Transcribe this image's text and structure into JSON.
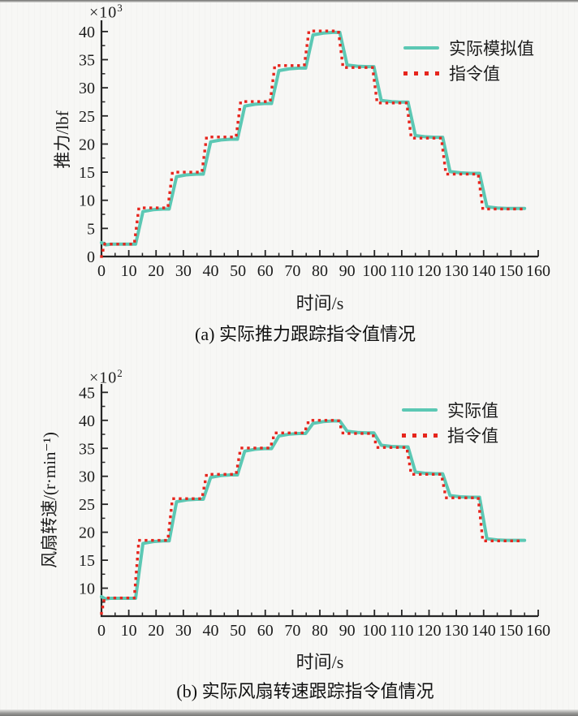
{
  "page": {
    "background": "#f7f7f5",
    "kind": "two-panel step-tracking figure"
  },
  "colors": {
    "actual_line": "#5cc8b4",
    "command_dots": "#e6251d",
    "axis": "#262626",
    "text": "#1c1c1c"
  },
  "chart_data": [
    {
      "type": "line",
      "caption_index": "(a)",
      "caption_text": "实际推力跟踪指令值情况",
      "xlabel": "时间/s",
      "ylabel": "推力/lbf",
      "y_multiplier_base": "×10",
      "y_multiplier_exp": "3",
      "xlim": [
        0,
        160
      ],
      "ylim": [
        0,
        42
      ],
      "x_ticks": [
        0,
        10,
        20,
        30,
        40,
        50,
        60,
        70,
        80,
        90,
        100,
        110,
        120,
        130,
        140,
        150,
        160
      ],
      "y_ticks": [
        0,
        5,
        10,
        15,
        20,
        25,
        30,
        35,
        40
      ],
      "grid": false,
      "legend_position": "top-right",
      "step_times": [
        0,
        12,
        24.3,
        36.8,
        49.3,
        61.8,
        74.3,
        86.8,
        99.3,
        111.8,
        124.5,
        138
      ],
      "t_end": 155,
      "series": [
        {
          "label": "实际模拟值",
          "style": "solid",
          "color": "#5cc8b4",
          "levels": [
            2.2,
            8.45,
            14.65,
            20.85,
            27.2,
            33.5,
            39.85,
            33.75,
            27.45,
            21.2,
            14.8,
            8.55
          ],
          "start_value": 2.2
        },
        {
          "label": "指令值",
          "style": "dotted",
          "color": "#e6251d",
          "levels": [
            2.2,
            8.65,
            15.0,
            21.25,
            27.55,
            33.95,
            40.1,
            33.6,
            27.3,
            21.05,
            14.65,
            8.45
          ],
          "start_value": 0
        }
      ]
    },
    {
      "type": "line",
      "caption_index": "(b)",
      "caption_text": "实际风扇转速跟踪指令值情况",
      "xlabel": "时间/s",
      "ylabel": "风扇转速/(r·min⁻¹)",
      "y_multiplier_base": "×10",
      "y_multiplier_exp": "2",
      "xlim": [
        0,
        160
      ],
      "ylim": [
        5,
        46.5
      ],
      "x_ticks": [
        0,
        10,
        20,
        30,
        40,
        50,
        60,
        70,
        80,
        90,
        100,
        110,
        120,
        130,
        140,
        150,
        160
      ],
      "y_ticks": [
        10,
        15,
        20,
        25,
        30,
        35,
        40,
        45
      ],
      "grid": false,
      "legend_position": "top-right",
      "step_times": [
        0,
        12,
        24.3,
        36.8,
        49.3,
        61.8,
        74.3,
        86.8,
        99.3,
        111.8,
        124.5,
        138
      ],
      "t_end": 155,
      "series": [
        {
          "label": "实际值",
          "style": "solid",
          "color": "#5cc8b4",
          "levels": [
            8.2,
            18.45,
            25.9,
            30.25,
            34.95,
            37.65,
            39.9,
            37.75,
            35.25,
            30.45,
            26.25,
            18.55
          ],
          "start_value": 8.2
        },
        {
          "label": "指令值",
          "style": "dotted",
          "color": "#e6251d",
          "levels": [
            8.25,
            18.55,
            26.0,
            30.35,
            35.05,
            37.75,
            40.0,
            37.65,
            35.15,
            30.35,
            26.15,
            18.45
          ],
          "start_value": 5.5
        }
      ]
    }
  ]
}
